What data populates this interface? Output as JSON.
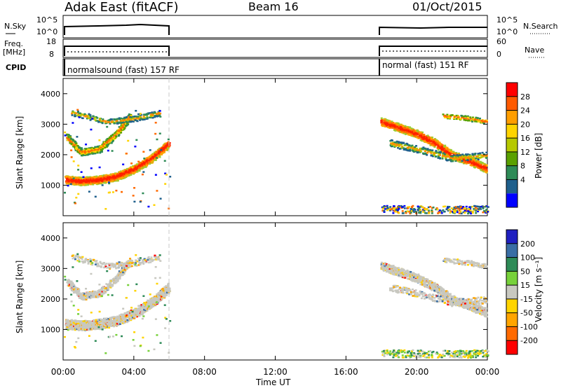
{
  "header": {
    "station": "Adak East (fitACF)",
    "beam": "Beam 16",
    "date": "01/Oct/2015"
  },
  "panels": {
    "nsky_label": "N.Sky",
    "nsky_ticks": [
      "10^5",
      "10^0"
    ],
    "nsearch_label": "N.Search",
    "freq_label_1": "Freq.",
    "freq_label_2": "[MHz]",
    "freq_ticks": [
      "18",
      "8"
    ],
    "nave_label": "Nave",
    "nave_ticks": [
      "60",
      "0"
    ],
    "cpid_label": "CPID",
    "cpid_entries": [
      "normalsound (fast) 157 RF",
      "normal (fast) 151 RF"
    ]
  },
  "colorbars": {
    "power": {
      "label": "Power [dB]",
      "ticks": [
        "28",
        "24",
        "20",
        "16",
        "12",
        "8",
        "4"
      ],
      "colors": [
        "#ff0000",
        "#ff5a00",
        "#ff9e00",
        "#ffd400",
        "#b6c800",
        "#5aa000",
        "#2e8b57",
        "#1e5f8c",
        "#0000ff"
      ]
    },
    "velocity": {
      "label": "Velocity [m s⁻¹]",
      "ticks": [
        "200",
        "100",
        "50",
        "15",
        "-15",
        "-50",
        "-100",
        "-200"
      ],
      "colors": [
        "#2020c0",
        "#3a6ea5",
        "#2e8b57",
        "#77d13a",
        "#c8c8c0",
        "#ffd400",
        "#ffa500",
        "#ff6a00",
        "#ff0000"
      ]
    }
  },
  "axes": {
    "ylabel": "Slant Range [km]",
    "yticks": [
      "4000",
      "3000",
      "2000",
      "1000"
    ],
    "xticks": [
      "00:00",
      "04:00",
      "08:00",
      "12:00",
      "16:00",
      "20:00",
      "00:00"
    ],
    "xlabel": "Time UT"
  },
  "chart_data": [
    {
      "type": "heatmap",
      "title": "Power",
      "xlabel": "",
      "ylabel": "Slant Range [km]",
      "xlim_hours": [
        0,
        24
      ],
      "ylim_km": [
        0,
        4500
      ],
      "data_segments_hours": [
        [
          0,
          6
        ],
        [
          18,
          24
        ]
      ],
      "features": [
        {
          "segment": "0-6 UT",
          "range_km": [
            1100,
            1300
          ],
          "approx_power_db": 28
        },
        {
          "segment": "0-6 UT",
          "range_km": [
            2200,
            3500
          ],
          "approx_power_db": 20
        },
        {
          "segment": "18-24 UT",
          "range_km": [
            1500,
            3200
          ],
          "approx_power_db": 24
        }
      ]
    },
    {
      "type": "heatmap",
      "title": "Velocity",
      "xlabel": "Time UT",
      "ylabel": "Slant Range [km]",
      "xlim_hours": [
        0,
        24
      ],
      "ylim_km": [
        0,
        4500
      ],
      "data_segments_hours": [
        [
          0,
          6
        ],
        [
          18,
          24
        ]
      ],
      "features": [
        {
          "segment": "0-6 UT",
          "range_km": [
            1100,
            3500
          ],
          "approx_velocity_ms": 0
        },
        {
          "segment": "18-24 UT",
          "range_km": [
            1500,
            3400
          ],
          "approx_velocity_ms": 0
        }
      ]
    }
  ]
}
